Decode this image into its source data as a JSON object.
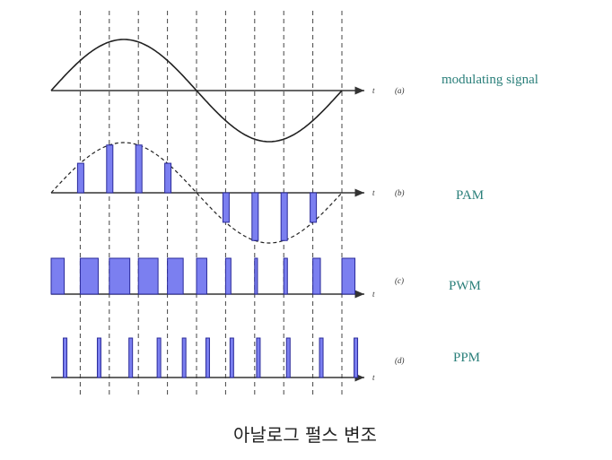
{
  "diagram": {
    "panels": [
      {
        "tag": "(a)",
        "axis": "t",
        "label": "modulating signal"
      },
      {
        "tag": "(b)",
        "axis": "t",
        "label": "PAM"
      },
      {
        "tag": "(c)",
        "axis": "t",
        "label": "PWM"
      },
      {
        "tag": "(d)",
        "axis": "t",
        "label": "PPM"
      }
    ],
    "caption": "아날로그 펄스 변조"
  }
}
